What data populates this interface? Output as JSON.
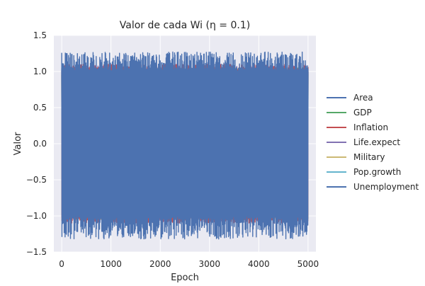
{
  "chart_data": {
    "type": "line",
    "title": "Valor de cada Wi (η = 0.1)",
    "xlabel": "Epoch",
    "ylabel": "Valor",
    "xlim": [
      -160,
      5160
    ],
    "ylim": [
      -1.5,
      1.5
    ],
    "xticks": [
      0,
      1000,
      2000,
      3000,
      4000,
      5000
    ],
    "xtick_labels": [
      "0",
      "1000",
      "2000",
      "3000",
      "4000",
      "5000"
    ],
    "yticks": [
      -1.5,
      -1.0,
      -0.5,
      0.0,
      0.5,
      1.0,
      1.5
    ],
    "ytick_labels": [
      "−1.5",
      "−1.0",
      "−0.5",
      "0.0",
      "0.5",
      "1.0",
      "1.5"
    ],
    "grid": true,
    "legend_position": "right",
    "x_range": [
      0,
      5000
    ],
    "series": [
      {
        "name": "Area",
        "color": "#4c72b0",
        "amplitude_max": 1.05,
        "amplitude_min": -1.05
      },
      {
        "name": "GDP",
        "color": "#55a868",
        "amplitude_max": 1.05,
        "amplitude_min": -1.05
      },
      {
        "name": "Inflation",
        "color": "#c44e52",
        "amplitude_max": 1.1,
        "amplitude_min": -1.1
      },
      {
        "name": "Life.expect",
        "color": "#8172b2",
        "amplitude_max": 1.08,
        "amplitude_min": -1.08
      },
      {
        "name": "Military",
        "color": "#ccb974",
        "amplitude_max": 1.05,
        "amplitude_min": -1.05
      },
      {
        "name": "Pop.growth",
        "color": "#64b5cd",
        "amplitude_max": 1.05,
        "amplitude_min": -1.05
      },
      {
        "name": "Unemployment",
        "color": "#4c72b0",
        "amplitude_max": 1.27,
        "amplitude_min": -1.32
      }
    ]
  },
  "colors": {
    "plot_background": "#eaeaf2",
    "grid": "#ffffff"
  }
}
